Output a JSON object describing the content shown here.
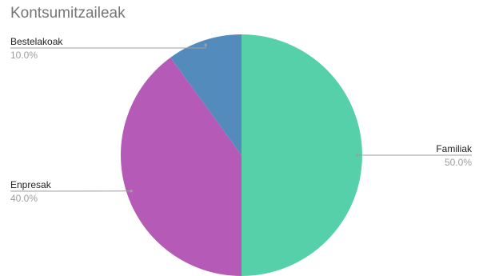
{
  "chart_data": {
    "type": "pie",
    "title": "Kontsumitzaileak",
    "slices": [
      {
        "label": "Familiak",
        "value": 50.0,
        "percent_label": "50.0%",
        "color": "#56d0a8"
      },
      {
        "label": "Enpresak",
        "value": 40.0,
        "percent_label": "40.0%",
        "color": "#b65ab8"
      },
      {
        "label": "Bestelakoak",
        "value": 10.0,
        "percent_label": "10.0%",
        "color": "#538cbc"
      }
    ],
    "leader_line_color": "#9e9e9e",
    "legend": "none"
  }
}
